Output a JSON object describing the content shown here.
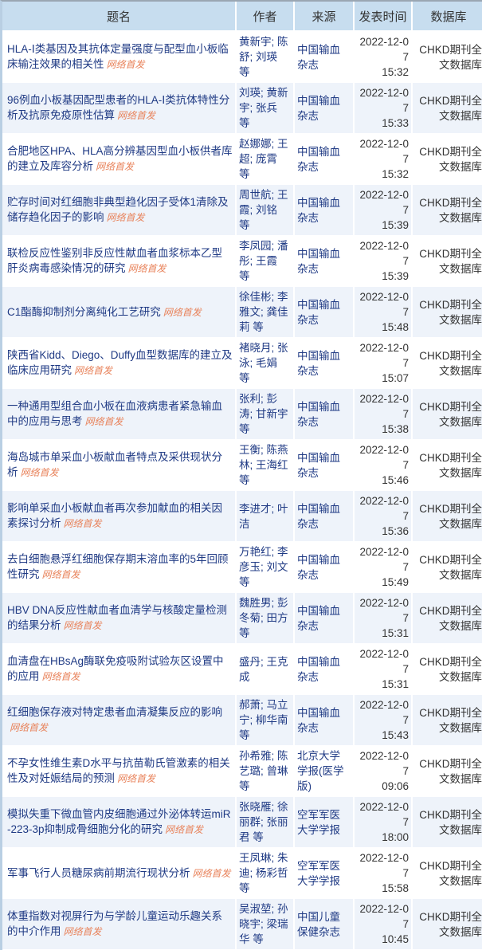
{
  "headers": {
    "title": "题名",
    "author": "作者",
    "source": "来源",
    "date": "发表时间",
    "db": "数据库"
  },
  "badge_label": "网络首发",
  "colors": {
    "header_bg": "#c7ddef",
    "link": "#1f3a84",
    "badge": "#e8825a",
    "alt_row": "#eef3fa"
  },
  "rows": [
    {
      "title": "HLA-Ⅰ类基因及其抗体定量强度与配型血小板临床输注效果的相关性",
      "author": "黄新宇; 陈舒; 刘瑛 等",
      "source": "中国输血杂志",
      "date": "2022-12-07",
      "time": "15:32",
      "db": "CHKD期刊全文数据库"
    },
    {
      "title": "96例血小板基因配型患者的HLA-Ⅰ类抗体特性分析及抗原免疫原性估算",
      "author": "刘瑛; 黄新宇; 张兵 等",
      "source": "中国输血杂志",
      "date": "2022-12-07",
      "time": "15:33",
      "db": "CHKD期刊全文数据库"
    },
    {
      "title": "合肥地区HPA、HLA高分辨基因型血小板供者库的建立及库容分析",
      "author": "赵娜娜; 王超; 庞霄 等",
      "source": "中国输血杂志",
      "date": "2022-12-07",
      "time": "15:32",
      "db": "CHKD期刊全文数据库"
    },
    {
      "title": "贮存时间对红细胞非典型趋化因子受体1清除及储存趋化因子的影响",
      "author": "周世航; 王霞; 刘铭 等",
      "source": "中国输血杂志",
      "date": "2022-12-07",
      "time": "15:39",
      "db": "CHKD期刊全文数据库"
    },
    {
      "title": "联检反应性鉴别非反应性献血者血浆标本乙型肝炎病毒感染情况的研究",
      "author": "李凤园; 潘彤; 王霞 等",
      "source": "中国输血杂志",
      "date": "2022-12-07",
      "time": "15:39",
      "db": "CHKD期刊全文数据库"
    },
    {
      "title": "C1酯酶抑制剂分离纯化工艺研究",
      "author": "徐佳彬; 李雅文; 龚佳莉 等",
      "source": "中国输血杂志",
      "date": "2022-12-07",
      "time": "15:48",
      "db": "CHKD期刊全文数据库"
    },
    {
      "title": "陕西省Kidd、Diego、Duffy血型数据库的建立及临床应用研究",
      "author": "褚晓月; 张泳; 毛娟 等",
      "source": "中国输血杂志",
      "date": "2022-12-07",
      "time": "15:07",
      "db": "CHKD期刊全文数据库"
    },
    {
      "title": "一种通用型组合血小板在血液病患者紧急输血中的应用与思考",
      "author": "张利; 彭涛; 甘新宇 等",
      "source": "中国输血杂志",
      "date": "2022-12-07",
      "time": "15:38",
      "db": "CHKD期刊全文数据库"
    },
    {
      "title": "海岛城市单采血小板献血者特点及采供现状分析",
      "author": "王衡; 陈燕林; 王海红 等",
      "source": "中国输血杂志",
      "date": "2022-12-07",
      "time": "15:46",
      "db": "CHKD期刊全文数据库"
    },
    {
      "title": "影响单采血小板献血者再次参加献血的相关因素探讨分析",
      "author": "李进才; 叶洁",
      "source": "中国输血杂志",
      "date": "2022-12-07",
      "time": "15:36",
      "db": "CHKD期刊全文数据库"
    },
    {
      "title": "去白细胞悬浮红细胞保存期末溶血率的5年回顾性研究",
      "author": "万艳红; 李彦玉; 刘文 等",
      "source": "中国输血杂志",
      "date": "2022-12-07",
      "time": "15:49",
      "db": "CHKD期刊全文数据库"
    },
    {
      "title": "HBV DNA反应性献血者血清学与核酸定量检测的结果分析",
      "author": "魏胜男; 彭冬菊; 田方 等",
      "source": "中国输血杂志",
      "date": "2022-12-07",
      "time": "15:31",
      "db": "CHKD期刊全文数据库"
    },
    {
      "title": "血清盘在HBsAg酶联免疫吸附试验灰区设置中的应用",
      "author": "盛丹; 王克成",
      "source": "中国输血杂志",
      "date": "2022-12-07",
      "time": "15:31",
      "db": "CHKD期刊全文数据库"
    },
    {
      "title": "红细胞保存液对特定患者血清凝集反应的影响",
      "author": "郝萧; 马立宁; 柳华南 等",
      "source": "中国输血杂志",
      "date": "2022-12-07",
      "time": "15:43",
      "db": "CHKD期刊全文数据库"
    },
    {
      "title": "不孕女性维生素D水平与抗苗勒氏管激素的相关性及对妊娠结局的预测",
      "author": "孙希雅; 陈艺璐; 曾琳 等",
      "source": "北京大学学报(医学版)",
      "date": "2022-12-07",
      "time": "09:06",
      "db": "CHKD期刊全文数据库"
    },
    {
      "title": "模拟失重下微血管内皮细胞通过外泌体转运miR-223-3p抑制成骨细胞分化的研究",
      "author": "张晓雁; 徐丽群; 张丽君 等",
      "source": "空军军医大学学报",
      "date": "2022-12-07",
      "time": "18:00",
      "db": "CHKD期刊全文数据库"
    },
    {
      "title": "军事飞行人员糖尿病前期流行现状分析",
      "author": "王凤琳; 朱迪; 杨彩哲 等",
      "source": "空军军医大学学报",
      "date": "2022-12-07",
      "time": "15:58",
      "db": "CHKD期刊全文数据库"
    },
    {
      "title": "体重指数对视屏行为与学龄儿童运动乐趣关系的中介作用",
      "author": "吴淑堃; 孙晓宇; 梁瑞华 等",
      "source": "中国儿童保健杂志",
      "date": "2022-12-07",
      "time": "10:45",
      "db": "CHKD期刊全文数据库"
    }
  ]
}
